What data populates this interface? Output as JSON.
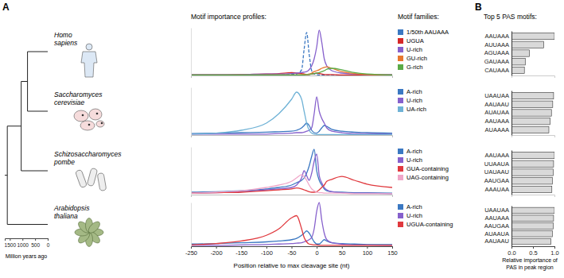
{
  "figure": {
    "panel_a": "A",
    "panel_b": "B",
    "profiles_title": "Motif importance profiles:",
    "legend_title": "Motif families:",
    "pas_title": "Top 5 PAS motifs:",
    "tree": {
      "xlabel": "Million years ago",
      "xlim": [
        1700,
        0
      ],
      "xticks": [
        1500,
        1000,
        500,
        0
      ],
      "divergence_times": [
        800,
        1050,
        1600
      ]
    }
  },
  "chart_data": [
    {
      "type": "line",
      "title": "Homo sapiens",
      "tick_labels": false,
      "xlim": [
        -250,
        150
      ],
      "ylim": [
        0,
        1
      ],
      "x": [
        -250,
        -200,
        -150,
        -100,
        -75,
        -50,
        -40,
        -30,
        -25,
        -20,
        -15,
        -10,
        -5,
        0,
        5,
        10,
        15,
        20,
        30,
        50,
        75,
        100,
        150
      ],
      "series": [
        {
          "name": "1/50th AAUAAA",
          "color": "#3b78c2",
          "line_style": "dashed",
          "values": [
            0,
            0,
            0,
            0.01,
            0.01,
            0.02,
            0.03,
            0.12,
            0.55,
            0.9,
            0.45,
            0.1,
            0.03,
            0.02,
            0.01,
            0.01,
            0.01,
            0,
            0,
            0,
            0,
            0,
            0
          ]
        },
        {
          "name": "UGUA",
          "color": "#d62728",
          "line_style": "solid",
          "values": [
            0.01,
            0.01,
            0.02,
            0.03,
            0.04,
            0.06,
            0.05,
            0.04,
            0.03,
            0.02,
            0.02,
            0.03,
            0.04,
            0.05,
            0.04,
            0.03,
            0.02,
            0.02,
            0.02,
            0.01,
            0.01,
            0.01,
            0.01
          ]
        },
        {
          "name": "U-rich",
          "color": "#8660cc",
          "line_style": "solid",
          "values": [
            0.02,
            0.02,
            0.02,
            0.03,
            0.03,
            0.04,
            0.05,
            0.06,
            0.07,
            0.08,
            0.12,
            0.2,
            0.35,
            0.6,
            0.95,
            0.7,
            0.35,
            0.2,
            0.1,
            0.05,
            0.03,
            0.02,
            0.02
          ]
        },
        {
          "name": "GU-rich",
          "color": "#e8772e",
          "line_style": "solid",
          "values": [
            0.01,
            0.01,
            0.01,
            0.01,
            0.01,
            0.01,
            0.01,
            0.02,
            0.02,
            0.02,
            0.03,
            0.05,
            0.08,
            0.1,
            0.12,
            0.15,
            0.17,
            0.18,
            0.15,
            0.08,
            0.04,
            0.02,
            0.01
          ]
        },
        {
          "name": "G-rich",
          "color": "#5aab46",
          "line_style": "solid",
          "values": [
            0.01,
            0.01,
            0.01,
            0.01,
            0.01,
            0.01,
            0.01,
            0.01,
            0.01,
            0.02,
            0.02,
            0.03,
            0.04,
            0.05,
            0.06,
            0.08,
            0.1,
            0.13,
            0.15,
            0.12,
            0.06,
            0.03,
            0.01
          ]
        }
      ]
    },
    {
      "type": "line",
      "title": "Saccharomyces cerevisiae",
      "tick_labels": false,
      "xlim": [
        -250,
        150
      ],
      "ylim": [
        0,
        1
      ],
      "x": [
        -250,
        -200,
        -150,
        -100,
        -75,
        -50,
        -40,
        -30,
        -25,
        -20,
        -15,
        -10,
        -5,
        0,
        5,
        10,
        15,
        20,
        30,
        50,
        75,
        100,
        150
      ],
      "series": [
        {
          "name": "A-rich",
          "color": "#3b78c2",
          "line_style": "solid",
          "values": [
            0.03,
            0.04,
            0.05,
            0.06,
            0.07,
            0.08,
            0.1,
            0.15,
            0.2,
            0.25,
            0.2,
            0.1,
            0.05,
            0.04,
            0.08,
            0.15,
            0.2,
            0.18,
            0.12,
            0.08,
            0.06,
            0.05,
            0.04
          ]
        },
        {
          "name": "U-rich",
          "color": "#8660cc",
          "line_style": "solid",
          "values": [
            0.02,
            0.02,
            0.02,
            0.02,
            0.03,
            0.04,
            0.05,
            0.05,
            0.06,
            0.08,
            0.1,
            0.15,
            0.45,
            0.8,
            0.5,
            0.35,
            0.25,
            0.15,
            0.08,
            0.05,
            0.03,
            0.03,
            0.02
          ]
        },
        {
          "name": "UA-rich",
          "color": "#6fb2d6",
          "line_style": "solid",
          "values": [
            0.02,
            0.04,
            0.1,
            0.25,
            0.45,
            0.75,
            0.9,
            0.75,
            0.5,
            0.25,
            0.1,
            0.04,
            0.02,
            0.01,
            0.01,
            0.01,
            0.01,
            0.01,
            0.01,
            0.01,
            0.01,
            0.01,
            0.01
          ]
        }
      ]
    },
    {
      "type": "line",
      "title": "Schizosaccharomyces pombe",
      "tick_labels": false,
      "xlim": [
        -250,
        150
      ],
      "ylim": [
        0,
        1
      ],
      "x": [
        -250,
        -200,
        -150,
        -100,
        -75,
        -50,
        -40,
        -30,
        -25,
        -20,
        -15,
        -10,
        -5,
        0,
        5,
        10,
        15,
        20,
        30,
        50,
        75,
        100,
        150
      ],
      "series": [
        {
          "name": "A-rich",
          "color": "#3b78c2",
          "line_style": "solid",
          "values": [
            0.05,
            0.06,
            0.08,
            0.12,
            0.15,
            0.2,
            0.25,
            0.3,
            0.35,
            0.45,
            0.6,
            0.8,
            0.95,
            0.5,
            0.3,
            0.2,
            0.12,
            0.08,
            0.06,
            0.05,
            0.04,
            0.04,
            0.03
          ]
        },
        {
          "name": "U-rich",
          "color": "#8660cc",
          "line_style": "solid",
          "values": [
            0.03,
            0.04,
            0.06,
            0.1,
            0.12,
            0.15,
            0.2,
            0.35,
            0.5,
            0.4,
            0.3,
            0.45,
            0.7,
            0.85,
            0.4,
            0.25,
            0.15,
            0.1,
            0.06,
            0.04,
            0.03,
            0.03,
            0.02
          ]
        },
        {
          "name": "GUA-containing",
          "color": "#e0393e",
          "line_style": "solid",
          "values": [
            0.03,
            0.04,
            0.05,
            0.08,
            0.1,
            0.12,
            0.14,
            0.12,
            0.1,
            0.08,
            0.06,
            0.05,
            0.05,
            0.06,
            0.1,
            0.15,
            0.2,
            0.28,
            0.32,
            0.38,
            0.3,
            0.22,
            0.15
          ]
        },
        {
          "name": "UAG-containing",
          "color": "#f0a6c8",
          "line_style": "solid",
          "values": [
            0.03,
            0.05,
            0.08,
            0.15,
            0.2,
            0.28,
            0.35,
            0.42,
            0.38,
            0.3,
            0.2,
            0.12,
            0.08,
            0.05,
            0.04,
            0.04,
            0.03,
            0.03,
            0.03,
            0.03,
            0.02,
            0.02,
            0.02
          ]
        }
      ]
    },
    {
      "type": "line",
      "title": "Arabidopsis thaliana",
      "tick_labels": "x",
      "xlabel": "Position relative to max cleavage site (nt)",
      "xlim": [
        -250,
        150
      ],
      "ylim": [
        0,
        1
      ],
      "xticks": [
        -250,
        -200,
        -150,
        -100,
        -50,
        0,
        50,
        100,
        150
      ],
      "x": [
        -250,
        -200,
        -150,
        -100,
        -75,
        -50,
        -40,
        -30,
        -25,
        -20,
        -15,
        -10,
        -5,
        0,
        5,
        10,
        15,
        20,
        30,
        50,
        75,
        100,
        150
      ],
      "series": [
        {
          "name": "A-rich",
          "color": "#3b78c2",
          "line_style": "solid",
          "values": [
            0.05,
            0.06,
            0.08,
            0.1,
            0.12,
            0.15,
            0.18,
            0.25,
            0.3,
            0.35,
            0.3,
            0.2,
            0.1,
            0.05,
            0.05,
            0.1,
            0.15,
            0.12,
            0.08,
            0.06,
            0.05,
            0.04,
            0.04
          ]
        },
        {
          "name": "U-rich",
          "color": "#8660cc",
          "line_style": "solid",
          "values": [
            0.02,
            0.02,
            0.03,
            0.04,
            0.05,
            0.06,
            0.07,
            0.08,
            0.1,
            0.12,
            0.15,
            0.2,
            0.4,
            0.8,
            1,
            0.6,
            0.3,
            0.15,
            0.08,
            0.05,
            0.03,
            0.03,
            0.02
          ]
        },
        {
          "name": "UGUA-containing",
          "color": "#e0393e",
          "line_style": "solid",
          "values": [
            0.03,
            0.06,
            0.12,
            0.25,
            0.4,
            0.65,
            0.7,
            0.4,
            0.2,
            0.1,
            0.05,
            0.04,
            0.03,
            0.03,
            0.02,
            0.02,
            0.02,
            0.02,
            0.02,
            0.02,
            0.02,
            0.02,
            0.02
          ]
        }
      ]
    },
    {
      "type": "bar",
      "orientation": "horizontal",
      "color": "#d9d9d9",
      "tick_labels": "y",
      "xlim": [
        0,
        1
      ],
      "categories": [
        "AAUAAA",
        "AUUAAA",
        "AGUAAA",
        "GAUAAA",
        "CAUAAA"
      ],
      "values": [
        1,
        0.75,
        0.42,
        0.32,
        0.3
      ]
    },
    {
      "type": "bar",
      "orientation": "horizontal",
      "color": "#d9d9d9",
      "tick_labels": "y",
      "xlim": [
        0,
        1
      ],
      "categories": [
        "UAAUAA",
        "AAUAAU",
        "AUAUAA",
        "AAUAAA",
        "AUAAAA"
      ],
      "values": [
        0.98,
        0.96,
        0.93,
        0.9,
        0.87
      ]
    },
    {
      "type": "bar",
      "orientation": "horizontal",
      "color": "#d9d9d9",
      "tick_labels": "y",
      "xlim": [
        0,
        1
      ],
      "categories": [
        "AAUAAA",
        "UUAAUA",
        "UAUAAU",
        "AAUGAA",
        "AAAUAA"
      ],
      "values": [
        1,
        0.98,
        0.97,
        0.95,
        0.94
      ]
    },
    {
      "type": "bar",
      "orientation": "horizontal",
      "color": "#d9d9d9",
      "tick_labels": true,
      "xlim": [
        0,
        1
      ],
      "xlabel": "Relative importance of\nPAS in peak region",
      "xticks": [
        {
          "value": 0,
          "label": "0.0"
        },
        {
          "value": 0.5,
          "label": "0.5"
        },
        {
          "value": 1,
          "label": "1.0"
        }
      ],
      "categories": [
        "UAAUAA",
        "AAUAAA",
        "AAUGAA",
        "AUAAUA",
        "AAUAAU"
      ],
      "values": [
        1,
        0.98,
        0.97,
        0.95,
        0.92
      ]
    }
  ]
}
